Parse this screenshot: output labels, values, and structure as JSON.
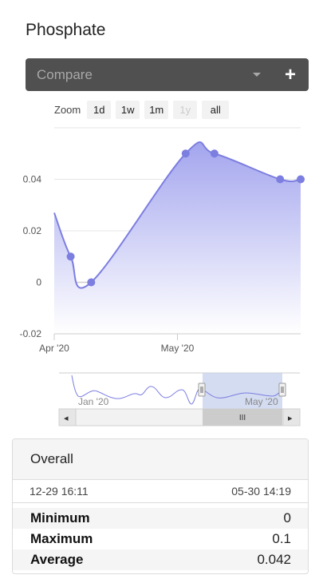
{
  "title": "Phosphate",
  "compare": {
    "placeholder": "Compare",
    "add_label": "+"
  },
  "zoom": {
    "label": "Zoom",
    "buttons": [
      {
        "label": "1d",
        "enabled": true
      },
      {
        "label": "1w",
        "enabled": true
      },
      {
        "label": "1m",
        "enabled": true
      },
      {
        "label": "1y",
        "enabled": false
      },
      {
        "label": "all",
        "enabled": true
      }
    ]
  },
  "colors": {
    "line": "#7c7ee0",
    "fill_top": "#a3a5ee",
    "fill_bottom": "#ffffff",
    "grid": "#e6e6e6",
    "zero_line": "#cfcfcf",
    "navigator_mask": "#c9d3ee"
  },
  "chart_data": {
    "type": "area",
    "title": "",
    "xlabel": "",
    "ylabel": "",
    "x_ticks": [
      "Apr '20",
      "May '20"
    ],
    "y_ticks": [
      -0.02,
      0,
      0.02,
      0.04
    ],
    "y_tick_labels": [
      "-0.02",
      "0",
      "0.02",
      "0.04"
    ],
    "ylim": [
      -0.02,
      0.06
    ],
    "xlim": [
      "2020-04-01",
      "2020-05-31"
    ],
    "grid": true,
    "legend": "none",
    "series": [
      {
        "x": [
          "2020-04-01",
          "2020-04-05",
          "2020-04-10",
          "2020-05-03",
          "2020-05-10",
          "2020-05-26",
          "2020-05-31"
        ],
        "values": [
          0.027,
          0.01,
          0.0,
          0.05,
          0.05,
          0.04,
          0.04
        ],
        "markers": [
          false,
          true,
          true,
          true,
          true,
          true,
          true
        ]
      }
    ]
  },
  "navigator": {
    "left_label": "Jan '20",
    "right_label": "May '20",
    "scroll_left": "◂",
    "scroll_right": "▸",
    "scroll_grip": "III"
  },
  "stats": {
    "heading": "Overall",
    "range_start": "12-29 16:11",
    "range_end": "05-30 14:19",
    "rows": [
      {
        "name": "Minimum",
        "value": "0"
      },
      {
        "name": "Maximum",
        "value": "0.1"
      },
      {
        "name": "Average",
        "value": "0.042"
      }
    ]
  }
}
